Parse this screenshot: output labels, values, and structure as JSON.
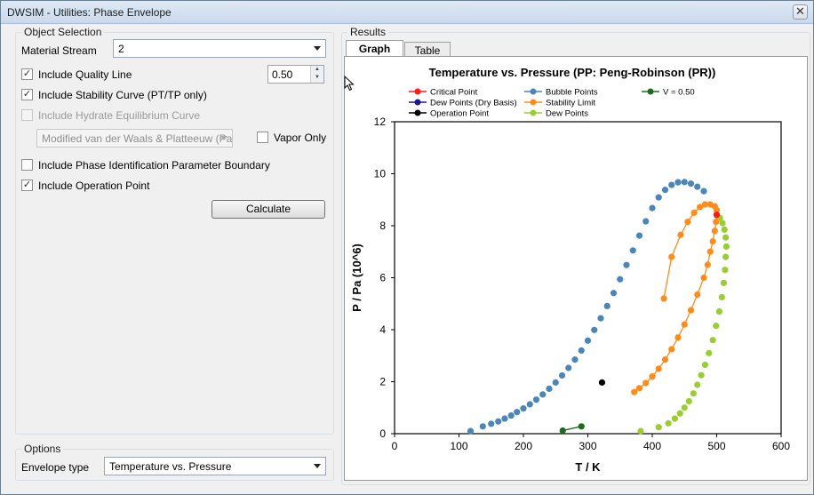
{
  "window": {
    "title": "DWSIM - Utilities: Phase Envelope",
    "close_glyph": "✕"
  },
  "object_selection": {
    "legend": "Object Selection",
    "material_stream_label": "Material Stream",
    "material_stream_value": "2",
    "quality_line": {
      "label": "Include Quality Line",
      "checked": true,
      "value": "0.50"
    },
    "stability_curve": {
      "label": "Include Stability Curve (PT/TP only)",
      "checked": true
    },
    "hydrate_curve": {
      "label": "Include Hydrate Equilibrium Curve",
      "checked": false,
      "enabled": false
    },
    "hydrate_model_value": "Modified van der Waals & Platteeuw (Parr",
    "vapor_only": {
      "label": "Vapor Only",
      "checked": false
    },
    "phase_id_boundary": {
      "label": "Include Phase Identification Parameter Boundary",
      "checked": false
    },
    "operation_point": {
      "label": "Include Operation Point",
      "checked": true
    },
    "calculate_label": "Calculate"
  },
  "options": {
    "legend": "Options",
    "envelope_type_label": "Envelope type",
    "envelope_type_value": "Temperature vs. Pressure"
  },
  "results": {
    "legend": "Results",
    "tabs": [
      {
        "label": "Graph",
        "active": true
      },
      {
        "label": "Table",
        "active": false
      }
    ]
  },
  "icons": {
    "checkmark": "✓",
    "spin_up": "▲",
    "spin_down": "▼"
  },
  "chart_data": {
    "type": "scatter",
    "title": "Temperature vs. Pressure (PP: Peng-Robinson (PR))",
    "xlabel": "T / K",
    "ylabel": "P / Pa (10^6)",
    "xlim": [
      0,
      600
    ],
    "ylim": [
      0,
      12
    ],
    "xticks": [
      "0",
      "100",
      "200",
      "300",
      "400",
      "500",
      "600"
    ],
    "yticks": [
      "0",
      "2",
      "4",
      "6",
      "8",
      "10",
      "12"
    ],
    "legend_position": "top",
    "series": [
      {
        "name": "Critical Point",
        "color": "#ff1a1a",
        "line": false,
        "x": [
          500
        ],
        "y": [
          8.42
        ]
      },
      {
        "name": "Dew Points (Dry Basis)",
        "color": "#1a1a8c",
        "line": false,
        "x": [],
        "y": []
      },
      {
        "name": "Operation Point",
        "color": "#000000",
        "line": false,
        "x": [
          322
        ],
        "y": [
          1.97
        ]
      },
      {
        "name": "Bubble Points",
        "color": "#4a86b8",
        "line": false,
        "x": [
          118,
          137,
          150,
          161,
          171,
          181,
          190,
          200,
          210,
          220,
          230,
          240,
          250,
          260,
          270,
          280,
          290,
          300,
          310,
          320,
          330,
          340,
          350,
          360,
          370,
          380,
          390,
          400,
          410,
          420,
          430,
          440,
          450,
          460,
          470,
          480
        ],
        "y": [
          0.1,
          0.28,
          0.38,
          0.47,
          0.58,
          0.7,
          0.83,
          0.97,
          1.13,
          1.31,
          1.51,
          1.73,
          1.97,
          2.24,
          2.53,
          2.85,
          3.2,
          3.58,
          3.99,
          4.44,
          4.91,
          5.41,
          5.94,
          6.49,
          7.05,
          7.62,
          8.17,
          8.68,
          9.09,
          9.38,
          9.57,
          9.67,
          9.68,
          9.62,
          9.5,
          9.33
        ]
      },
      {
        "name": "Stability Limit",
        "color": "#ff8c1a",
        "line": true,
        "x": [
          372,
          380,
          390,
          400,
          410,
          420,
          430,
          440,
          450,
          460,
          470,
          480,
          486,
          490,
          494,
          497,
          499,
          500,
          500,
          497,
          490,
          482,
          474,
          465,
          455,
          444,
          430,
          418
        ],
        "y": [
          1.6,
          1.75,
          1.95,
          2.2,
          2.5,
          2.85,
          3.25,
          3.7,
          4.2,
          4.75,
          5.35,
          6.0,
          6.5,
          7.0,
          7.4,
          7.8,
          8.15,
          8.42,
          8.6,
          8.75,
          8.82,
          8.82,
          8.72,
          8.5,
          8.15,
          7.65,
          6.8,
          5.2
        ]
      },
      {
        "name": "Dew Points",
        "color": "#9acd32",
        "line": false,
        "x": [
          382,
          410,
          425,
          435,
          443,
          450,
          457,
          464,
          470,
          476,
          482,
          488,
          494,
          499,
          504,
          508,
          511,
          513,
          514,
          515,
          514,
          512,
          509,
          505,
          500
        ],
        "y": [
          0.1,
          0.25,
          0.4,
          0.58,
          0.78,
          1.0,
          1.25,
          1.55,
          1.88,
          2.25,
          2.65,
          3.1,
          3.6,
          4.15,
          4.7,
          5.25,
          5.8,
          6.3,
          6.8,
          7.2,
          7.55,
          7.85,
          8.1,
          8.3,
          8.42
        ]
      },
      {
        "name": "V = 0.50",
        "color": "#1e6b1e",
        "line": true,
        "x": [
          261,
          290
        ],
        "y": [
          0.12,
          0.28
        ]
      }
    ]
  }
}
